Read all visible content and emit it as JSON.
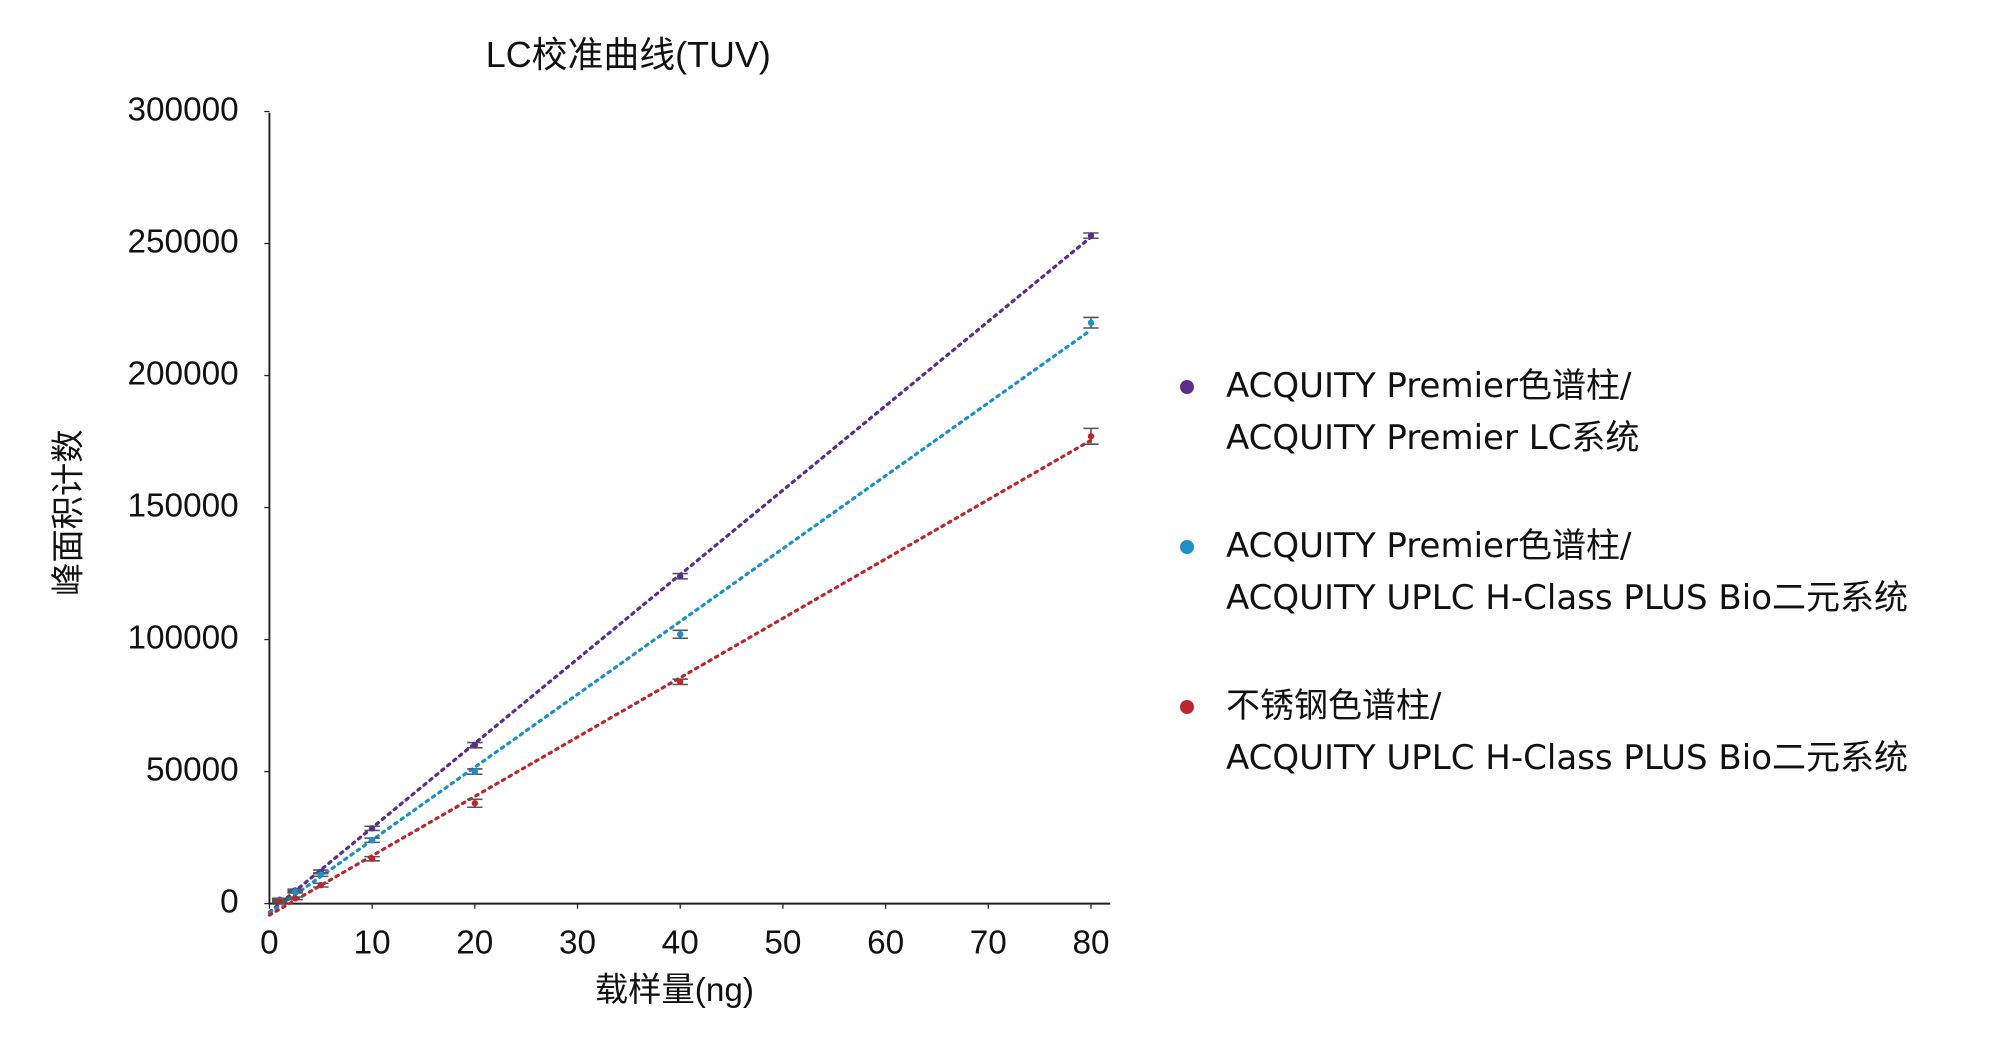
{
  "chart_data": {
    "type": "scatter",
    "title": "LC校准曲线(TUV)",
    "x_label": "载样量(ng)",
    "y_label": "峰面积计数",
    "x": [
      1,
      2.5,
      5,
      10,
      20,
      40,
      80
    ],
    "series": [
      {
        "name": "ACQUITY Premier色谱柱/\nACQUITY Premier LC系统",
        "color": "#5b2c8a",
        "values": [
          1500,
          5000,
          12000,
          28500,
          60000,
          124000,
          253000
        ],
        "errors": [
          500,
          500,
          700,
          800,
          1000,
          1000,
          1000
        ]
      },
      {
        "name": "ACQUITY Premier色谱柱/\nACQUITY UPLC H-Class PLUS Bio二元系统",
        "color": "#1b8fc6",
        "values": [
          1200,
          4500,
          11000,
          24000,
          50000,
          102000,
          220000
        ],
        "errors": [
          500,
          500,
          700,
          800,
          1000,
          1500,
          2000
        ]
      },
      {
        "name": "不锈钢色谱柱/\nACQUITY UPLC H-Class PLUS Bio二元系统",
        "color": "#b8282e",
        "values": [
          800,
          2000,
          7000,
          17000,
          38000,
          84000,
          177000
        ],
        "errors": [
          500,
          500,
          700,
          800,
          1500,
          1000,
          3000
        ]
      }
    ],
    "trendline": "linear",
    "xlim": [
      0,
      80
    ],
    "xticks": [
      0,
      10,
      20,
      30,
      40,
      50,
      60,
      70,
      80
    ],
    "ylim": [
      0,
      300000
    ],
    "yticks": [
      0,
      50000,
      100000,
      150000,
      200000,
      250000,
      300000
    ],
    "grid": false,
    "legend": "right"
  }
}
